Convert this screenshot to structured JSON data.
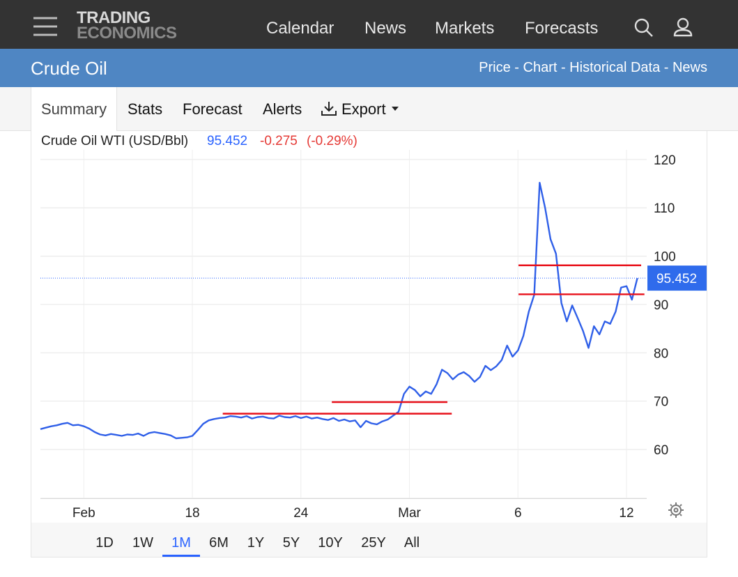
{
  "nav": {
    "logo_top": "TRADING",
    "logo_bottom": "ECONOMICS",
    "items": [
      "Calendar",
      "News",
      "Markets",
      "Forecasts"
    ]
  },
  "title_bar": {
    "title": "Crude Oil",
    "links": "Price - Chart - Historical Data - News"
  },
  "tabs": [
    "Summary",
    "Stats",
    "Forecast",
    "Alerts",
    "Export"
  ],
  "chart_data": {
    "type": "line",
    "title": "Crude Oil WTI (USD/Bbl)",
    "change": "-0.275",
    "change_pct": "(-0.29%)",
    "color": "#2f5fe8",
    "categories": [
      null,
      null,
      null,
      null,
      null,
      null,
      null,
      null,
      "Feb",
      null,
      null,
      null,
      null,
      null,
      null,
      null,
      null,
      null,
      null,
      null,
      null,
      null,
      null,
      null,
      null,
      null,
      null,
      null,
      "18",
      null,
      null,
      null,
      null,
      null,
      null,
      null,
      null,
      null,
      null,
      null,
      null,
      null,
      null,
      null,
      null,
      null,
      null,
      null,
      "24",
      null,
      null,
      null,
      null,
      null,
      null,
      null,
      null,
      null,
      null,
      null,
      null,
      null,
      null,
      null,
      null,
      null,
      null,
      null,
      "Mar",
      null,
      null,
      null,
      null,
      null,
      null,
      null,
      null,
      null,
      null,
      null,
      null,
      null,
      null,
      null,
      null,
      null,
      null,
      null,
      "6",
      null,
      null,
      null,
      null,
      null,
      null,
      null,
      null,
      null,
      null,
      null,
      null,
      null,
      null,
      null,
      null,
      null,
      null,
      null,
      "12",
      null,
      null
    ],
    "values": [
      64.2,
      64.5,
      64.8,
      65.0,
      65.3,
      65.5,
      65.0,
      65.1,
      64.8,
      64.3,
      63.6,
      63.1,
      62.9,
      63.2,
      63.0,
      62.8,
      63.1,
      63.0,
      63.3,
      62.8,
      63.4,
      63.6,
      63.4,
      63.2,
      62.9,
      62.3,
      62.4,
      62.5,
      62.8,
      64.0,
      65.3,
      66.0,
      66.3,
      66.5,
      66.6,
      66.9,
      66.8,
      66.6,
      66.9,
      66.4,
      66.7,
      66.8,
      66.5,
      66.4,
      67.0,
      66.7,
      66.6,
      66.9,
      66.5,
      66.8,
      66.4,
      66.6,
      66.3,
      66.1,
      66.5,
      65.9,
      66.2,
      65.8,
      66.0,
      64.6,
      65.9,
      65.4,
      65.2,
      65.8,
      66.2,
      67.0,
      67.8,
      71.5,
      73.0,
      72.3,
      71.0,
      72.0,
      71.5,
      73.5,
      76.5,
      75.8,
      74.5,
      75.5,
      76.0,
      75.2,
      74.0,
      75.0,
      77.3,
      76.4,
      77.2,
      78.5,
      81.5,
      79.2,
      80.5,
      83.5,
      88.5,
      92.0,
      115.2,
      110.0,
      103.5,
      100.5,
      90.3,
      86.5,
      89.8,
      87.2,
      84.5,
      81.0,
      85.5,
      83.8,
      86.5,
      86.0,
      88.5,
      93.5,
      93.8,
      91.0,
      95.452
    ],
    "ylim": [
      50,
      122
    ],
    "yticks": [
      60,
      70,
      80,
      90,
      100,
      110,
      120
    ],
    "grid": true,
    "last_value_line": true,
    "lines": [
      {
        "from": 33.6,
        "to": 75.8,
        "value": 67.4,
        "color": "#e8101a"
      },
      {
        "from": 53.7,
        "to": 75.0,
        "value": 69.8,
        "color": "#e8101a"
      },
      {
        "from": 88.1,
        "to": 110.7,
        "value": 98.1,
        "color": "#e8101a"
      },
      {
        "from": 88.1,
        "to": 111.3,
        "value": 92.1,
        "color": "#e8101a"
      }
    ]
  },
  "ranges": [
    "1D",
    "1W",
    "1M",
    "6M",
    "1Y",
    "5Y",
    "10Y",
    "25Y",
    "All"
  ],
  "active_range_index": 2
}
